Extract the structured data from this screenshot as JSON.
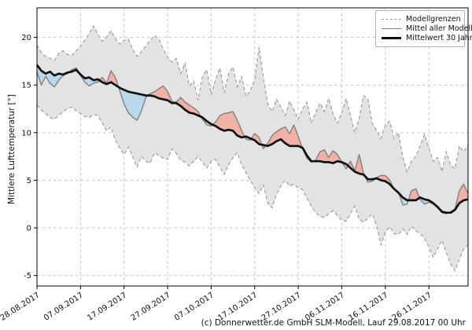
{
  "figure": {
    "ylabel": "Mittlere Lufttemperatur [°]",
    "caption": "(c) Donnerwetter.de GmbH SLM-Modell, Lauf 29.08.2017 00 Uhr",
    "legend": {
      "entries": [
        {
          "label": "Modellgrenzen",
          "style": "dashed",
          "color": "#999999"
        },
        {
          "label": "Mittel aller Modelle",
          "style": "solid",
          "color": "#808080"
        },
        {
          "label": "Mittelwert 30 Jahre",
          "style": "solid-thick",
          "color": "#111111"
        }
      ]
    }
  },
  "chart_data": {
    "type": "line",
    "title": "",
    "xlabel": "",
    "ylabel": "Mittlere Lufttemperatur [°]",
    "grid": true,
    "legend_position": "top-right",
    "x_step_days": 1,
    "x_tick_positions": [
      0,
      10,
      20,
      30,
      40,
      50,
      60,
      70,
      80,
      90
    ],
    "x_tick_labels": [
      "28.08.2017",
      "07.09.2017",
      "17.09.2017",
      "27.09.2017",
      "07.10.2017",
      "17.10.2017",
      "27.10.2017",
      "06.11.2017",
      "16.11.2017",
      "26.11.2017"
    ],
    "y_ticks": [
      -5,
      0,
      5,
      10,
      15,
      20
    ],
    "xlim": [
      0,
      99
    ],
    "ylim": [
      -6.1,
      23.1
    ],
    "colors": {
      "band_fill": "#e3e3e3",
      "band_edge": "#999999",
      "model_mean_line": "#808080",
      "climate_mean_line": "#111111",
      "warm_fill": "#f1b2a5",
      "cold_fill": "#b8d8ec",
      "grid": "#c6c6c6",
      "frame": "#000000"
    },
    "series": [
      {
        "name": "Modellgrenzen (obere Grenze)",
        "values": [
          19.2,
          18.4,
          18.0,
          17.8,
          17.6,
          18.3,
          18.6,
          18.2,
          18.1,
          18.6,
          19.1,
          19.7,
          20.4,
          21.2,
          20.3,
          19.6,
          20.0,
          20.7,
          19.9,
          19.3,
          19.7,
          19.8,
          18.7,
          18.0,
          18.5,
          19.1,
          19.7,
          20.2,
          19.8,
          18.8,
          17.9,
          17.4,
          17.8,
          16.2,
          17.3,
          14.9,
          15.4,
          13.4,
          15.9,
          16.6,
          14.0,
          15.5,
          16.8,
          14.2,
          16.2,
          16.9,
          14.8,
          15.9,
          13.8,
          14.4,
          15.6,
          19.0,
          15.8,
          13.0,
          12.2,
          13.5,
          12.7,
          11.8,
          13.3,
          12.4,
          11.4,
          12.5,
          13.2,
          11.0,
          12.1,
          13.1,
          12.2,
          13.6,
          12.0,
          11.0,
          12.1,
          13.6,
          11.8,
          10.0,
          11.5,
          13.9,
          13.5,
          11.0,
          10.2,
          9.4,
          10.8,
          11.2,
          9.4,
          10.0,
          7.4,
          5.9,
          7.0,
          7.5,
          8.6,
          9.8,
          8.4,
          7.0,
          7.4,
          5.9,
          8.0,
          6.6,
          6.2,
          8.6,
          8.0,
          8.7
        ]
      },
      {
        "name": "Modellgrenzen (untere Grenze)",
        "values": [
          12.9,
          12.4,
          12.0,
          11.6,
          11.4,
          11.8,
          12.2,
          12.5,
          12.7,
          12.3,
          12.0,
          11.7,
          11.6,
          11.9,
          11.8,
          11.0,
          10.2,
          10.6,
          9.2,
          8.4,
          7.7,
          8.5,
          7.4,
          6.4,
          7.5,
          7.0,
          6.8,
          7.9,
          7.6,
          7.3,
          7.2,
          8.3,
          7.8,
          7.1,
          6.9,
          6.5,
          7.0,
          7.5,
          6.9,
          6.3,
          7.0,
          7.2,
          6.4,
          5.6,
          6.6,
          7.4,
          7.9,
          6.6,
          5.8,
          5.0,
          4.2,
          3.6,
          4.5,
          2.6,
          2.1,
          3.5,
          4.4,
          5.0,
          4.4,
          4.6,
          4.2,
          4.0,
          3.1,
          2.3,
          1.6,
          1.2,
          1.1,
          1.5,
          1.8,
          1.3,
          0.8,
          0.7,
          1.5,
          2.3,
          0.9,
          0.6,
          1.0,
          1.5,
          0.2,
          -1.8,
          -0.4,
          0.1,
          -0.6,
          -0.7,
          -0.1,
          -0.7,
          0.2,
          -0.3,
          -0.6,
          -1.1,
          -2.0,
          -3.1,
          -2.2,
          -1.3,
          -2.6,
          -3.8,
          -4.5,
          -3.3,
          -2.2,
          -1.8
        ]
      },
      {
        "name": "Mittel aller Modelle",
        "values": [
          16.4,
          15.0,
          15.9,
          15.2,
          14.8,
          15.5,
          16.0,
          16.2,
          16.6,
          16.8,
          16.0,
          15.3,
          14.9,
          15.2,
          15.3,
          15.8,
          15.2,
          16.5,
          15.8,
          14.4,
          13.0,
          12.1,
          11.6,
          11.3,
          12.3,
          13.7,
          14.1,
          14.3,
          14.6,
          14.9,
          14.3,
          13.3,
          13.2,
          13.7,
          13.2,
          12.9,
          12.6,
          12.2,
          11.4,
          10.8,
          10.7,
          11.1,
          11.8,
          12.0,
          12.1,
          12.2,
          11.3,
          10.2,
          9.3,
          9.2,
          9.9,
          9.5,
          8.3,
          8.9,
          9.7,
          10.1,
          10.4,
          10.6,
          9.9,
          10.8,
          9.6,
          8.3,
          7.3,
          6.9,
          7.1,
          8.0,
          8.2,
          7.4,
          8.1,
          7.7,
          6.9,
          6.2,
          7.0,
          6.0,
          7.7,
          5.7,
          4.8,
          4.9,
          5.3,
          5.5,
          5.5,
          5.0,
          4.1,
          3.8,
          2.4,
          2.5,
          3.9,
          4.1,
          3.0,
          2.5,
          2.7,
          2.5,
          2.1,
          1.6,
          1.5,
          1.7,
          2.0,
          3.9,
          4.6,
          3.6
        ]
      },
      {
        "name": "Mittelwert 30 Jahre",
        "values": [
          17.1,
          16.5,
          16.2,
          16.4,
          16.0,
          16.2,
          16.1,
          16.3,
          16.4,
          16.6,
          16.1,
          15.7,
          15.8,
          15.5,
          15.6,
          15.3,
          15.1,
          15.3,
          15.0,
          14.7,
          14.5,
          14.3,
          14.2,
          14.1,
          14.0,
          13.9,
          13.9,
          13.8,
          13.6,
          13.5,
          13.4,
          13.1,
          13.1,
          12.8,
          12.4,
          12.1,
          12.0,
          11.8,
          11.6,
          11.2,
          10.9,
          10.7,
          10.4,
          10.2,
          10.3,
          10.2,
          9.7,
          9.5,
          9.6,
          9.4,
          9.2,
          8.8,
          8.7,
          8.6,
          8.8,
          9.1,
          9.3,
          8.9,
          8.6,
          8.6,
          8.6,
          8.4,
          7.6,
          7.0,
          7.0,
          7.0,
          6.9,
          6.9,
          6.8,
          7.0,
          6.9,
          6.7,
          6.3,
          5.9,
          5.7,
          5.6,
          5.1,
          5.1,
          5.2,
          5.0,
          4.9,
          4.6,
          4.1,
          3.7,
          3.2,
          2.9,
          2.9,
          2.9,
          3.2,
          3.0,
          2.9,
          2.6,
          2.2,
          1.7,
          1.6,
          1.6,
          1.9,
          2.6,
          2.9,
          3.0
        ]
      }
    ]
  }
}
